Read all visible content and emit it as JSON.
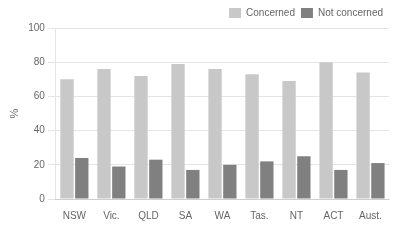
{
  "chart_data": {
    "type": "bar",
    "categories": [
      "NSW",
      "Vic.",
      "QLD",
      "SA",
      "WA",
      "Tas.",
      "NT",
      "ACT",
      "Aust."
    ],
    "series": [
      {
        "name": "Concerned",
        "color": "#c8c8c8",
        "values": [
          70,
          76,
          72,
          79,
          76,
          73,
          69,
          80,
          74
        ]
      },
      {
        "name": "Not concerned",
        "color": "#808080",
        "values": [
          24,
          19,
          23,
          17,
          20,
          22,
          25,
          17,
          21
        ]
      }
    ],
    "ylabel": "%",
    "ylim": [
      0,
      100
    ],
    "yticks": [
      0,
      20,
      40,
      60,
      80,
      100
    ],
    "grid": true,
    "legend": "upper right"
  }
}
